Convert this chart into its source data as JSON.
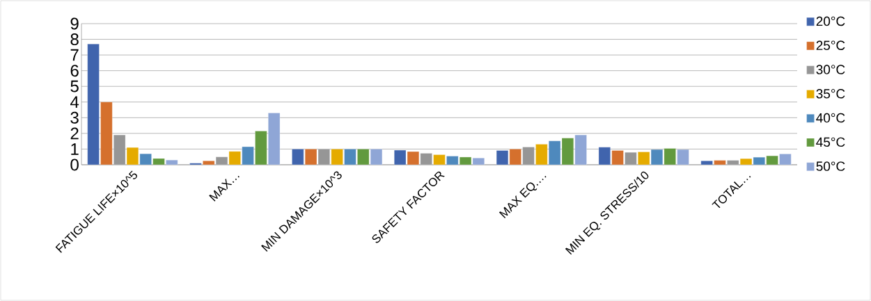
{
  "chart_data": {
    "type": "bar",
    "categories": [
      "FATIGUE LIFE×10^5",
      "MAX…",
      "MIN DAMAGE×10^3",
      "SAFETY FACTOR",
      "MAX EQ.…",
      "MIN EQ. STRESS/10",
      "TOTAL…"
    ],
    "series": [
      {
        "name": "20°C",
        "color": "#4064ad",
        "values": [
          7.7,
          0.1,
          1,
          0.93,
          0.91,
          1.12,
          0.25
        ]
      },
      {
        "name": "25°C",
        "color": "#d5702d",
        "values": [
          4.0,
          0.25,
          1,
          0.84,
          1.0,
          0.91,
          0.28
        ]
      },
      {
        "name": "30°C",
        "color": "#969696",
        "values": [
          1.9,
          0.5,
          1,
          0.73,
          1.13,
          0.79,
          0.28
        ]
      },
      {
        "name": "35°C",
        "color": "#e5ab00",
        "values": [
          1.1,
          0.85,
          1,
          0.64,
          1.31,
          0.82,
          0.39
        ]
      },
      {
        "name": "40°C",
        "color": "#4e89bd",
        "values": [
          0.7,
          1.15,
          1,
          0.55,
          1.52,
          0.97,
          0.48
        ]
      },
      {
        "name": "45°C",
        "color": "#629a3e",
        "values": [
          0.4,
          2.15,
          1,
          0.49,
          1.7,
          1.04,
          0.57
        ]
      },
      {
        "name": "50°C",
        "color": "#8fa6d6",
        "values": [
          0.3,
          3.3,
          1,
          0.43,
          1.9,
          0.97,
          0.69
        ]
      }
    ],
    "ylim": [
      0,
      9
    ],
    "yticks": [
      0,
      1,
      2,
      3,
      4,
      5,
      6,
      7,
      8,
      9
    ],
    "grid": "y",
    "legend": "right"
  }
}
